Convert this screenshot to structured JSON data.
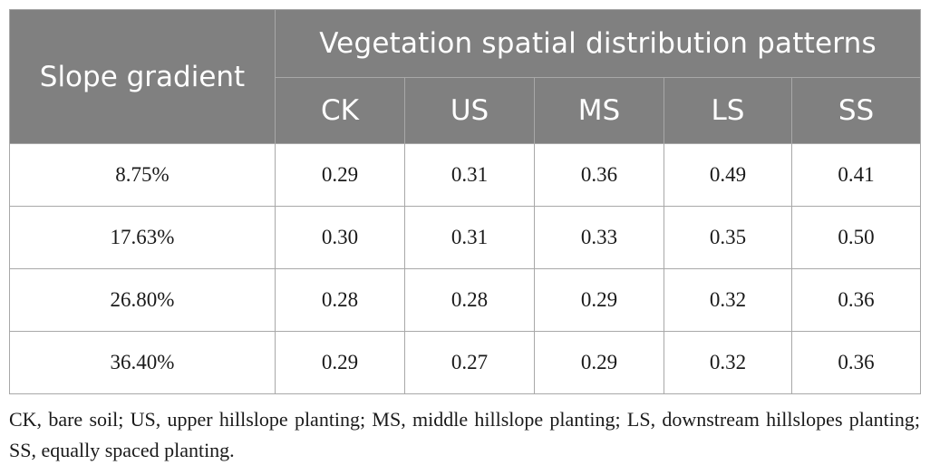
{
  "table": {
    "row_header_label": "Slope gradient",
    "group_header_label": "Vegetation spatial distribution patterns",
    "columns": [
      "CK",
      "US",
      "MS",
      "LS",
      "SS"
    ],
    "rows": [
      {
        "slope": "8.75%",
        "values": [
          "0.29",
          "0.31",
          "0.36",
          "0.49",
          "0.41"
        ]
      },
      {
        "slope": "17.63%",
        "values": [
          "0.30",
          "0.31",
          "0.33",
          "0.35",
          "0.50"
        ]
      },
      {
        "slope": "26.80%",
        "values": [
          "0.28",
          "0.28",
          "0.29",
          "0.32",
          "0.36"
        ]
      },
      {
        "slope": "36.40%",
        "values": [
          "0.29",
          "0.27",
          "0.29",
          "0.32",
          "0.36"
        ]
      }
    ]
  },
  "footnote": "CK, bare soil; US, upper hillslope planting; MS, middle hillslope planting; LS, downstream hillslopes planting; SS, equally spaced planting."
}
